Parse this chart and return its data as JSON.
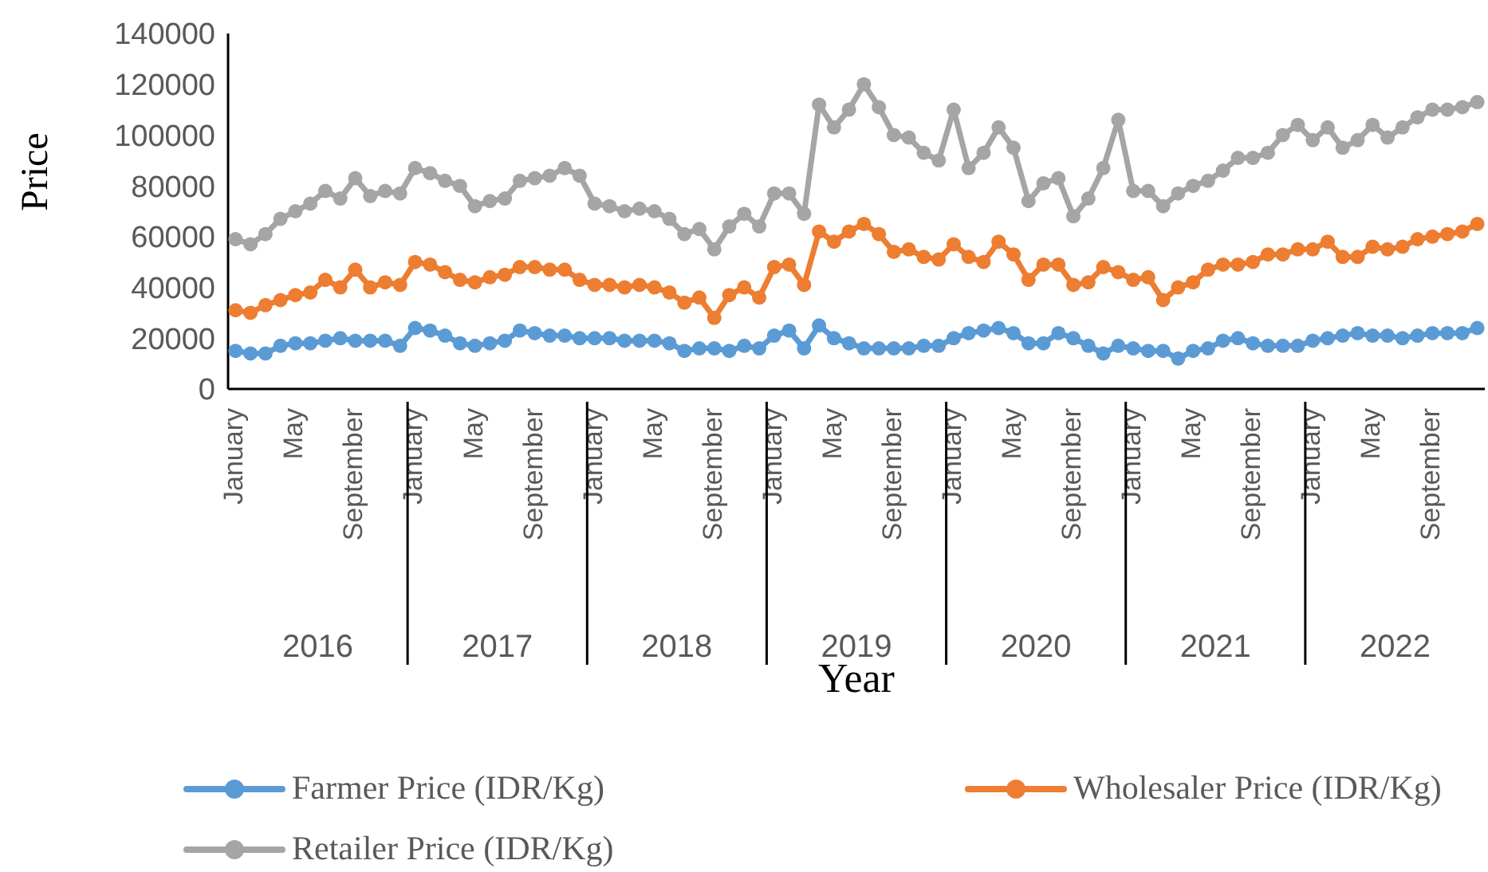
{
  "chart_data": {
    "type": "line",
    "xlabel": "Year",
    "ylabel": "Price",
    "categories": [
      "January",
      null,
      null,
      null,
      "May",
      null,
      null,
      null,
      "September",
      null,
      null,
      null,
      "January",
      null,
      null,
      null,
      "May",
      null,
      null,
      null,
      "September",
      null,
      null,
      null,
      "January",
      null,
      null,
      null,
      "May",
      null,
      null,
      null,
      "September",
      null,
      null,
      null,
      "January",
      null,
      null,
      null,
      "May",
      null,
      null,
      null,
      "September",
      null,
      null,
      null,
      "January",
      null,
      null,
      null,
      "May",
      null,
      null,
      null,
      "September",
      null,
      null,
      null,
      "January",
      null,
      null,
      null,
      "May",
      null,
      null,
      null,
      "September",
      null,
      null,
      null,
      "January",
      null,
      null,
      null,
      "May",
      null,
      null,
      null,
      "September",
      null,
      null,
      null
    ],
    "annotations": [
      "2016",
      "2017",
      "2018",
      "2019",
      "2020",
      "2021",
      "2022"
    ],
    "series": [
      {
        "name": "Farmer Price (IDR/Kg)",
        "color": "#5b9bd5",
        "values": [
          15000,
          14000,
          14000,
          17000,
          18000,
          18000,
          19000,
          20000,
          19000,
          19000,
          19000,
          17000,
          24000,
          23000,
          21000,
          18000,
          17000,
          18000,
          19000,
          23000,
          22000,
          21000,
          21000,
          20000,
          20000,
          20000,
          19000,
          19000,
          19000,
          18000,
          15000,
          16000,
          16000,
          15000,
          17000,
          16000,
          21000,
          23000,
          16000,
          25000,
          20000,
          18000,
          16000,
          16000,
          16000,
          16000,
          17000,
          17000,
          20000,
          22000,
          23000,
          24000,
          22000,
          18000,
          18000,
          22000,
          20000,
          17000,
          14000,
          17000,
          16000,
          15000,
          15000,
          12000,
          15000,
          16000,
          19000,
          20000,
          18000,
          17000,
          17000,
          17000,
          19000,
          20000,
          21000,
          22000,
          21000,
          21000,
          20000,
          21000,
          22000,
          22000,
          22000,
          24000
        ]
      },
      {
        "name": "Wholesaler Price (IDR/Kg)",
        "color": "#ed7d31",
        "values": [
          31000,
          30000,
          33000,
          35000,
          37000,
          38000,
          43000,
          40000,
          47000,
          40000,
          42000,
          41000,
          50000,
          49000,
          46000,
          43000,
          42000,
          44000,
          45000,
          48000,
          48000,
          47000,
          47000,
          43000,
          41000,
          41000,
          40000,
          41000,
          40000,
          38000,
          34000,
          36000,
          28000,
          37000,
          40000,
          36000,
          48000,
          49000,
          41000,
          62000,
          58000,
          62000,
          65000,
          61000,
          54000,
          55000,
          52000,
          51000,
          57000,
          52000,
          50000,
          58000,
          53000,
          43000,
          49000,
          49000,
          41000,
          42000,
          48000,
          46000,
          43000,
          44000,
          35000,
          40000,
          42000,
          47000,
          49000,
          49000,
          50000,
          53000,
          53000,
          55000,
          55000,
          58000,
          52000,
          52000,
          56000,
          55000,
          56000,
          59000,
          60000,
          61000,
          62000,
          65000
        ]
      },
      {
        "name": "Retailer Price (IDR/Kg)",
        "color": "#a5a5a5",
        "values": [
          59000,
          57000,
          61000,
          67000,
          70000,
          73000,
          78000,
          75000,
          83000,
          76000,
          78000,
          77000,
          87000,
          85000,
          82000,
          80000,
          72000,
          74000,
          75000,
          82000,
          83000,
          84000,
          87000,
          84000,
          73000,
          72000,
          70000,
          71000,
          70000,
          67000,
          61000,
          63000,
          55000,
          64000,
          69000,
          64000,
          77000,
          77000,
          69000,
          112000,
          103000,
          110000,
          120000,
          111000,
          100000,
          99000,
          93000,
          90000,
          110000,
          87000,
          93000,
          103000,
          95000,
          74000,
          81000,
          83000,
          68000,
          75000,
          87000,
          106000,
          78000,
          78000,
          72000,
          77000,
          80000,
          82000,
          86000,
          91000,
          91000,
          93000,
          100000,
          104000,
          98000,
          103000,
          95000,
          98000,
          104000,
          99000,
          103000,
          107000,
          110000,
          110000,
          111000,
          113000
        ]
      }
    ],
    "ylim": [
      0,
      140000
    ],
    "yticks": [
      0,
      20000,
      40000,
      60000,
      80000,
      100000,
      120000,
      140000
    ],
    "grid": false,
    "legend": "bottom",
    "marker": "circle",
    "line_style": "solid"
  }
}
